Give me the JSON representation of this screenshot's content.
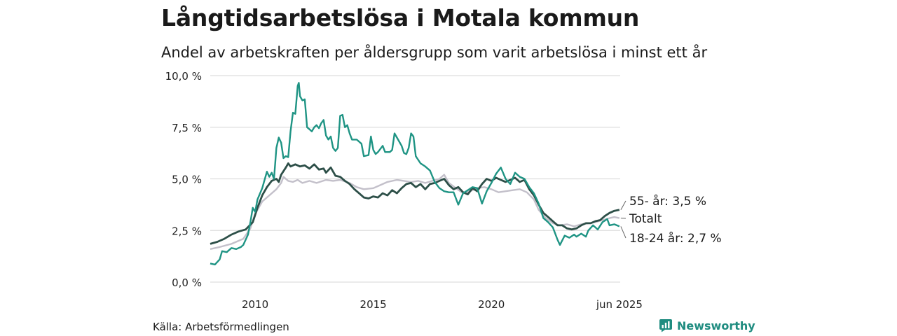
{
  "header": {
    "title": "Långtidsarbetslösa i Motala kommun",
    "subtitle": "Andel av arbetskraften per åldersgrupp som varit arbetslösa i minst ett år"
  },
  "footer": {
    "source": "Källa: Arbetsförmedlingen",
    "brand": "Newsworthy"
  },
  "colors": {
    "age_55_plus": "#2d4f48",
    "total": "#c3c0ca",
    "age_18_24": "#1f9484",
    "grid": "#dddddd",
    "brand": "#1f8c80"
  },
  "chart_data": {
    "type": "line",
    "y_ticks": [
      0,
      2.5,
      5,
      7.5,
      10
    ],
    "y_tick_labels": [
      "0,0 %",
      "2,5 %",
      "5,0 %",
      "7,5 %",
      "10,0 %"
    ],
    "x_ticks": [
      2010,
      2015,
      2020,
      2025.417
    ],
    "x_tick_labels": [
      "2010",
      "2015",
      "2020",
      "jun 2025"
    ],
    "xlim": [
      2008.1,
      2025.45
    ],
    "ylim": [
      0,
      10
    ],
    "grid": true,
    "series": [
      {
        "key": "total",
        "name": "Totalt",
        "end_label": "Totalt",
        "points": [
          [
            2008.1,
            1.6
          ],
          [
            2008.5,
            1.7
          ],
          [
            2009.0,
            1.85
          ],
          [
            2009.5,
            2.1
          ],
          [
            2009.8,
            2.6
          ],
          [
            2010.0,
            3.3
          ],
          [
            2010.3,
            3.9
          ],
          [
            2010.6,
            4.2
          ],
          [
            2010.9,
            4.5
          ],
          [
            2011.1,
            4.8
          ],
          [
            2011.2,
            5.1
          ],
          [
            2011.4,
            4.9
          ],
          [
            2011.6,
            4.85
          ],
          [
            2011.8,
            4.95
          ],
          [
            2012.0,
            4.8
          ],
          [
            2012.3,
            4.9
          ],
          [
            2012.6,
            4.8
          ],
          [
            2013.0,
            4.95
          ],
          [
            2013.3,
            4.9
          ],
          [
            2013.6,
            4.95
          ],
          [
            2014.0,
            4.8
          ],
          [
            2014.3,
            4.6
          ],
          [
            2014.6,
            4.5
          ],
          [
            2015.0,
            4.55
          ],
          [
            2015.3,
            4.7
          ],
          [
            2015.6,
            4.85
          ],
          [
            2016.0,
            4.95
          ],
          [
            2016.3,
            4.9
          ],
          [
            2016.6,
            4.85
          ],
          [
            2016.9,
            4.9
          ],
          [
            2017.2,
            4.8
          ],
          [
            2017.5,
            4.9
          ],
          [
            2017.8,
            5.0
          ],
          [
            2018.0,
            5.2
          ],
          [
            2018.2,
            4.8
          ],
          [
            2018.5,
            4.55
          ],
          [
            2018.8,
            4.3
          ],
          [
            2019.1,
            4.4
          ],
          [
            2019.4,
            4.55
          ],
          [
            2019.7,
            4.6
          ],
          [
            2020.0,
            4.5
          ],
          [
            2020.3,
            4.35
          ],
          [
            2020.6,
            4.4
          ],
          [
            2020.9,
            4.45
          ],
          [
            2021.2,
            4.5
          ],
          [
            2021.5,
            4.35
          ],
          [
            2021.8,
            4.0
          ],
          [
            2022.0,
            3.5
          ],
          [
            2022.3,
            3.1
          ],
          [
            2022.6,
            2.85
          ],
          [
            2022.9,
            2.75
          ],
          [
            2023.2,
            2.8
          ],
          [
            2023.5,
            2.7
          ],
          [
            2023.8,
            2.8
          ],
          [
            2024.1,
            2.85
          ],
          [
            2024.4,
            2.9
          ],
          [
            2024.7,
            3.0
          ],
          [
            2025.0,
            3.1
          ],
          [
            2025.2,
            3.15
          ],
          [
            2025.417,
            3.1
          ]
        ]
      },
      {
        "key": "age_55_plus",
        "name": "55- år",
        "end_label": "55- år: 3,5 %",
        "points": [
          [
            2008.1,
            1.85
          ],
          [
            2008.4,
            1.95
          ],
          [
            2008.7,
            2.1
          ],
          [
            2009.0,
            2.3
          ],
          [
            2009.3,
            2.45
          ],
          [
            2009.6,
            2.55
          ],
          [
            2009.9,
            2.9
          ],
          [
            2010.1,
            3.6
          ],
          [
            2010.3,
            4.2
          ],
          [
            2010.5,
            4.6
          ],
          [
            2010.7,
            4.9
          ],
          [
            2010.9,
            5.0
          ],
          [
            2011.0,
            4.85
          ],
          [
            2011.1,
            5.2
          ],
          [
            2011.3,
            5.55
          ],
          [
            2011.4,
            5.75
          ],
          [
            2011.5,
            5.6
          ],
          [
            2011.7,
            5.7
          ],
          [
            2011.9,
            5.6
          ],
          [
            2012.1,
            5.65
          ],
          [
            2012.3,
            5.5
          ],
          [
            2012.5,
            5.7
          ],
          [
            2012.7,
            5.45
          ],
          [
            2012.9,
            5.5
          ],
          [
            2013.0,
            5.3
          ],
          [
            2013.2,
            5.55
          ],
          [
            2013.4,
            5.15
          ],
          [
            2013.6,
            5.1
          ],
          [
            2013.8,
            4.9
          ],
          [
            2014.0,
            4.75
          ],
          [
            2014.2,
            4.5
          ],
          [
            2014.4,
            4.3
          ],
          [
            2014.6,
            4.1
          ],
          [
            2014.8,
            4.05
          ],
          [
            2015.0,
            4.15
          ],
          [
            2015.2,
            4.1
          ],
          [
            2015.4,
            4.3
          ],
          [
            2015.6,
            4.2
          ],
          [
            2015.8,
            4.45
          ],
          [
            2016.0,
            4.3
          ],
          [
            2016.2,
            4.55
          ],
          [
            2016.4,
            4.75
          ],
          [
            2016.6,
            4.8
          ],
          [
            2016.8,
            4.6
          ],
          [
            2017.0,
            4.75
          ],
          [
            2017.2,
            4.5
          ],
          [
            2017.4,
            4.75
          ],
          [
            2017.6,
            4.8
          ],
          [
            2017.8,
            4.9
          ],
          [
            2018.0,
            5.0
          ],
          [
            2018.2,
            4.7
          ],
          [
            2018.4,
            4.5
          ],
          [
            2018.6,
            4.6
          ],
          [
            2018.8,
            4.35
          ],
          [
            2019.0,
            4.25
          ],
          [
            2019.2,
            4.55
          ],
          [
            2019.4,
            4.4
          ],
          [
            2019.6,
            4.75
          ],
          [
            2019.8,
            5.0
          ],
          [
            2020.0,
            4.9
          ],
          [
            2020.2,
            5.05
          ],
          [
            2020.4,
            4.95
          ],
          [
            2020.6,
            4.85
          ],
          [
            2020.8,
            4.95
          ],
          [
            2021.0,
            5.05
          ],
          [
            2021.2,
            4.85
          ],
          [
            2021.4,
            4.95
          ],
          [
            2021.6,
            4.5
          ],
          [
            2021.8,
            4.2
          ],
          [
            2022.0,
            3.75
          ],
          [
            2022.2,
            3.35
          ],
          [
            2022.4,
            3.15
          ],
          [
            2022.6,
            2.95
          ],
          [
            2022.8,
            2.75
          ],
          [
            2023.0,
            2.75
          ],
          [
            2023.2,
            2.6
          ],
          [
            2023.4,
            2.55
          ],
          [
            2023.6,
            2.6
          ],
          [
            2023.8,
            2.75
          ],
          [
            2024.0,
            2.85
          ],
          [
            2024.2,
            2.85
          ],
          [
            2024.4,
            2.95
          ],
          [
            2024.6,
            3.0
          ],
          [
            2024.8,
            3.2
          ],
          [
            2025.0,
            3.35
          ],
          [
            2025.2,
            3.45
          ],
          [
            2025.417,
            3.5
          ]
        ]
      },
      {
        "key": "age_18_24",
        "name": "18-24 år",
        "end_label": "18-24 år: 2,7 %",
        "points": [
          [
            2008.1,
            0.9
          ],
          [
            2008.3,
            0.85
          ],
          [
            2008.5,
            1.1
          ],
          [
            2008.6,
            1.5
          ],
          [
            2008.8,
            1.45
          ],
          [
            2009.0,
            1.65
          ],
          [
            2009.2,
            1.6
          ],
          [
            2009.4,
            1.7
          ],
          [
            2009.5,
            1.8
          ],
          [
            2009.7,
            2.3
          ],
          [
            2009.8,
            2.9
          ],
          [
            2009.9,
            3.6
          ],
          [
            2010.0,
            3.4
          ],
          [
            2010.1,
            4.0
          ],
          [
            2010.3,
            4.55
          ],
          [
            2010.5,
            5.35
          ],
          [
            2010.6,
            5.1
          ],
          [
            2010.7,
            5.3
          ],
          [
            2010.8,
            5.0
          ],
          [
            2010.9,
            6.5
          ],
          [
            2011.0,
            7.0
          ],
          [
            2011.1,
            6.75
          ],
          [
            2011.2,
            6.0
          ],
          [
            2011.3,
            6.1
          ],
          [
            2011.4,
            6.05
          ],
          [
            2011.5,
            7.3
          ],
          [
            2011.6,
            8.2
          ],
          [
            2011.7,
            8.15
          ],
          [
            2011.8,
            9.5
          ],
          [
            2011.85,
            9.65
          ],
          [
            2011.9,
            9.0
          ],
          [
            2012.0,
            8.8
          ],
          [
            2012.1,
            8.85
          ],
          [
            2012.2,
            7.5
          ],
          [
            2012.3,
            7.4
          ],
          [
            2012.4,
            7.3
          ],
          [
            2012.5,
            7.5
          ],
          [
            2012.6,
            7.6
          ],
          [
            2012.7,
            7.45
          ],
          [
            2012.8,
            7.7
          ],
          [
            2012.9,
            7.85
          ],
          [
            2013.0,
            7.1
          ],
          [
            2013.1,
            6.9
          ],
          [
            2013.2,
            7.05
          ],
          [
            2013.3,
            6.5
          ],
          [
            2013.4,
            6.35
          ],
          [
            2013.5,
            6.5
          ],
          [
            2013.6,
            8.05
          ],
          [
            2013.7,
            8.1
          ],
          [
            2013.8,
            7.5
          ],
          [
            2013.9,
            7.6
          ],
          [
            2014.0,
            7.2
          ],
          [
            2014.1,
            6.9
          ],
          [
            2014.3,
            6.9
          ],
          [
            2014.5,
            6.7
          ],
          [
            2014.6,
            6.1
          ],
          [
            2014.8,
            6.15
          ],
          [
            2014.9,
            7.05
          ],
          [
            2015.0,
            6.4
          ],
          [
            2015.1,
            6.2
          ],
          [
            2015.2,
            6.3
          ],
          [
            2015.4,
            6.6
          ],
          [
            2015.5,
            6.3
          ],
          [
            2015.7,
            6.3
          ],
          [
            2015.8,
            6.4
          ],
          [
            2015.9,
            7.2
          ],
          [
            2016.0,
            7.0
          ],
          [
            2016.2,
            6.6
          ],
          [
            2016.3,
            6.25
          ],
          [
            2016.4,
            6.2
          ],
          [
            2016.5,
            6.5
          ],
          [
            2016.6,
            7.2
          ],
          [
            2016.7,
            7.05
          ],
          [
            2016.8,
            6.1
          ],
          [
            2017.0,
            5.75
          ],
          [
            2017.2,
            5.6
          ],
          [
            2017.4,
            5.4
          ],
          [
            2017.6,
            4.85
          ],
          [
            2017.8,
            4.55
          ],
          [
            2018.0,
            4.4
          ],
          [
            2018.2,
            4.35
          ],
          [
            2018.4,
            4.35
          ],
          [
            2018.6,
            3.75
          ],
          [
            2018.8,
            4.3
          ],
          [
            2019.0,
            4.45
          ],
          [
            2019.2,
            4.6
          ],
          [
            2019.4,
            4.55
          ],
          [
            2019.6,
            3.8
          ],
          [
            2019.8,
            4.4
          ],
          [
            2020.0,
            4.8
          ],
          [
            2020.2,
            5.25
          ],
          [
            2020.4,
            5.55
          ],
          [
            2020.6,
            5.0
          ],
          [
            2020.8,
            4.75
          ],
          [
            2021.0,
            5.3
          ],
          [
            2021.2,
            5.1
          ],
          [
            2021.4,
            5.0
          ],
          [
            2021.6,
            4.6
          ],
          [
            2021.8,
            4.3
          ],
          [
            2022.0,
            3.8
          ],
          [
            2022.2,
            3.1
          ],
          [
            2022.4,
            2.9
          ],
          [
            2022.6,
            2.65
          ],
          [
            2022.8,
            2.05
          ],
          [
            2022.9,
            1.8
          ],
          [
            2023.1,
            2.25
          ],
          [
            2023.3,
            2.15
          ],
          [
            2023.5,
            2.3
          ],
          [
            2023.6,
            2.2
          ],
          [
            2023.8,
            2.35
          ],
          [
            2024.0,
            2.2
          ],
          [
            2024.1,
            2.5
          ],
          [
            2024.3,
            2.75
          ],
          [
            2024.5,
            2.55
          ],
          [
            2024.7,
            2.9
          ],
          [
            2024.9,
            3.05
          ],
          [
            2025.0,
            2.75
          ],
          [
            2025.2,
            2.8
          ],
          [
            2025.417,
            2.7
          ]
        ]
      }
    ]
  }
}
